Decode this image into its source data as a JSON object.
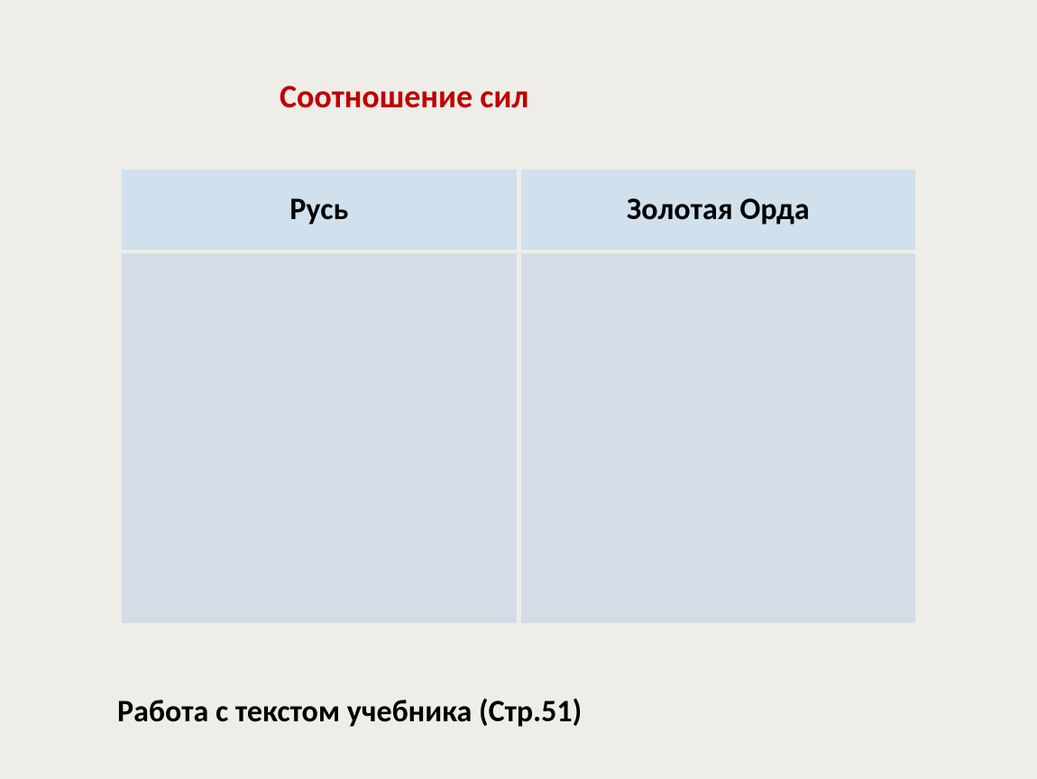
{
  "slide": {
    "title": "Соотношение сил",
    "title_color": "#c00000",
    "title_fontsize": 36,
    "background_color": "#eeede8",
    "footer_text": "Работа с текстом учебника (Стр.51)",
    "footer_fontsize": 34,
    "footer_color": "#000000"
  },
  "table": {
    "type": "table",
    "columns": [
      "Русь",
      "Золотая Орда"
    ],
    "header_bg_color": "#d0e0ec",
    "header_text_color": "#000000",
    "header_fontsize": 34,
    "body_bg_color": "#d6dce5",
    "body_height": 410,
    "cell_spacing": 5,
    "rows": [
      [
        "",
        ""
      ]
    ]
  }
}
